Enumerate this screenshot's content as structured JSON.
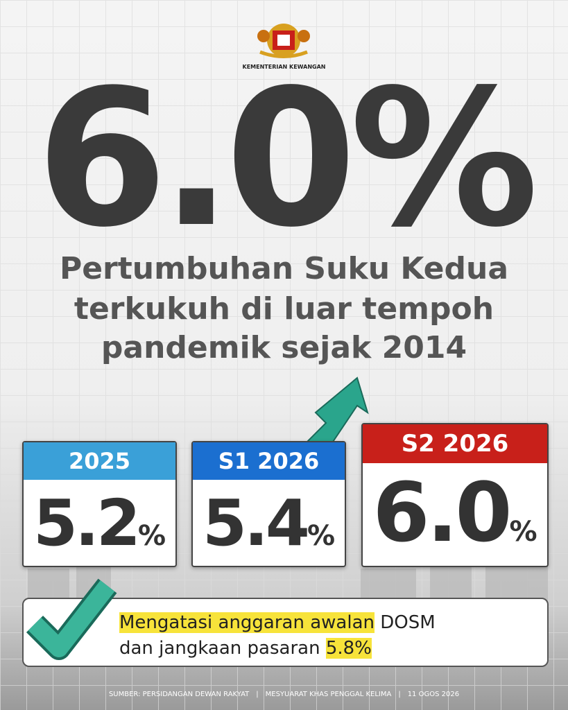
{
  "header": {
    "ministry": "KEMENTERIAN KEWANGAN"
  },
  "headline": "6.0%",
  "subtitle": [
    "Pertumbuhan Suku Kedua",
    "terkukuh di luar tempoh",
    "pandemik sejak 2014"
  ],
  "cards": [
    {
      "label": "2025",
      "value": "5.2",
      "unit": "%"
    },
    {
      "label": "S1 2026",
      "value": "5.4",
      "unit": "%"
    },
    {
      "label": "S2 2026",
      "value": "6.0",
      "unit": "%"
    }
  ],
  "note": {
    "highlight1": "Mengatasi anggaran awalan",
    "text1": "DOSM",
    "text2": "dan jangkaan pasaran",
    "highlight2": "5.8%"
  },
  "footer": [
    "SUMBER: PERSIDANGAN DEWAN RAKYAT",
    "MESYUARAT KHAS PENGGAL KELIMA",
    "11 OGOS 2026"
  ]
}
